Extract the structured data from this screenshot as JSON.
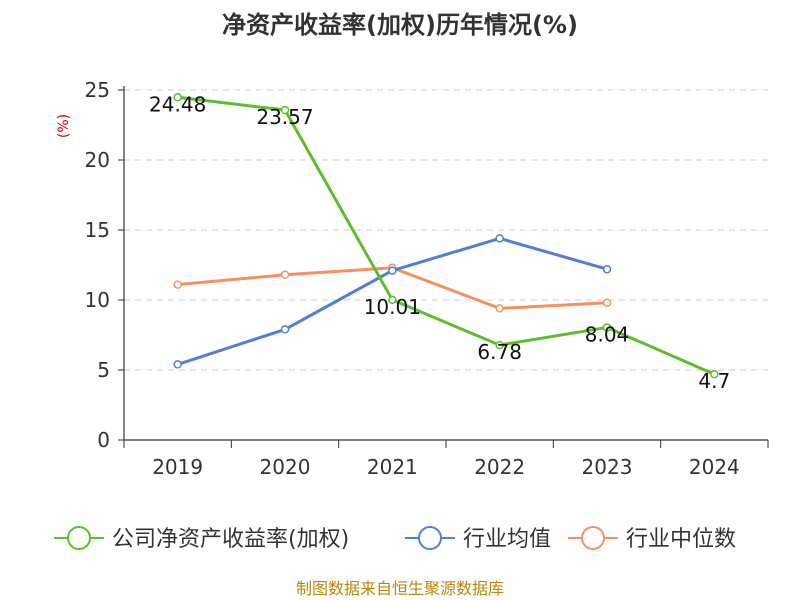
{
  "chart_data": {
    "type": "line",
    "title": "净资产收益率(加权)历年情况(%)",
    "ylabel": "(%)",
    "xlabel": "",
    "categories": [
      "2019",
      "2020",
      "2021",
      "2022",
      "2023",
      "2024"
    ],
    "ylim": [
      0,
      25
    ],
    "yticks": [
      0,
      5,
      10,
      15,
      20,
      25
    ],
    "grid": true,
    "legend_position": "bottom",
    "series": [
      {
        "name": "公司净资产收益率(加权)",
        "color": "#5cbf2a",
        "values": [
          24.48,
          23.57,
          10.01,
          6.78,
          8.04,
          4.7
        ],
        "labels": [
          "24.48",
          "23.57",
          "10.01",
          "6.78",
          "8.04",
          "4.7"
        ]
      },
      {
        "name": "行业均值",
        "color": "#4f7fd6",
        "values": [
          5.4,
          7.9,
          12.1,
          14.4,
          12.2,
          null
        ]
      },
      {
        "name": "行业中位数",
        "color": "#f59160",
        "values": [
          11.1,
          11.8,
          12.3,
          9.4,
          9.8,
          null
        ]
      }
    ],
    "source": "制图数据来自恒生聚源数据库"
  }
}
